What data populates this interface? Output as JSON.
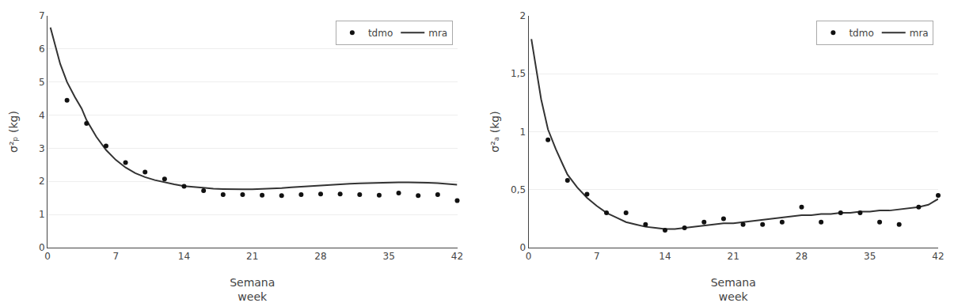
{
  "chart_data": [
    {
      "type": "line",
      "x_label": "Semana\nweek",
      "y_label": "σ²ₚ (kg)",
      "xlim": [
        0,
        42
      ],
      "xticks": [
        0,
        7,
        14,
        21,
        28,
        35,
        42
      ],
      "ylim": [
        0,
        7
      ],
      "yticks": [
        0,
        1,
        2,
        3,
        4,
        5,
        6,
        7
      ],
      "grid": "y",
      "legend": "upper right",
      "series": [
        {
          "name": "tdmo",
          "type": "scatter",
          "marker": "circle",
          "color": "#111111",
          "x": [
            2,
            4,
            6,
            8,
            10,
            12,
            14,
            16,
            18,
            20,
            22,
            24,
            26,
            28,
            30,
            32,
            34,
            36,
            38,
            40,
            42
          ],
          "values": [
            4.45,
            3.75,
            3.07,
            2.57,
            2.28,
            2.07,
            1.85,
            1.72,
            1.6,
            1.6,
            1.58,
            1.57,
            1.6,
            1.62,
            1.62,
            1.6,
            1.58,
            1.65,
            1.57,
            1.6,
            1.42
          ]
        },
        {
          "name": "mra",
          "type": "line",
          "line_style": "solid",
          "color": "#333333",
          "x": [
            0.3,
            0.8,
            1.3,
            2,
            2.8,
            3.5,
            4,
            5,
            6,
            7,
            8,
            9,
            10,
            11,
            12,
            13,
            14,
            15,
            16,
            17,
            18,
            19,
            20,
            21,
            22,
            23,
            24,
            25,
            26,
            27,
            28,
            29,
            30,
            31,
            32,
            33,
            34,
            35,
            36,
            37,
            38,
            39,
            40,
            41,
            42
          ],
          "values": [
            6.65,
            6.1,
            5.55,
            5.0,
            4.55,
            4.2,
            3.85,
            3.35,
            2.95,
            2.65,
            2.42,
            2.25,
            2.13,
            2.04,
            1.97,
            1.91,
            1.86,
            1.83,
            1.8,
            1.78,
            1.77,
            1.76,
            1.76,
            1.76,
            1.77,
            1.78,
            1.8,
            1.82,
            1.84,
            1.86,
            1.88,
            1.9,
            1.92,
            1.93,
            1.94,
            1.95,
            1.96,
            1.97,
            1.97,
            1.97,
            1.97,
            1.96,
            1.95,
            1.93,
            1.9
          ]
        }
      ]
    },
    {
      "type": "line",
      "x_label": "Semana\nweek",
      "y_label": "σ²ₐ (kg)",
      "xlim": [
        0,
        42
      ],
      "xticks": [
        0,
        7,
        14,
        21,
        28,
        35,
        42
      ],
      "ylim": [
        0,
        2
      ],
      "yticks": [
        0,
        {
          "value": 0.5,
          "label": "0,5"
        },
        1,
        {
          "value": 1.5,
          "label": "1,5"
        },
        2
      ],
      "grid": "y",
      "legend": "upper right",
      "series": [
        {
          "name": "tdmo",
          "type": "scatter",
          "marker": "circle",
          "color": "#111111",
          "x": [
            2,
            4,
            6,
            8,
            10,
            12,
            14,
            16,
            18,
            20,
            22,
            24,
            26,
            28,
            30,
            32,
            34,
            36,
            38,
            40,
            42
          ],
          "values": [
            0.93,
            0.58,
            0.46,
            0.3,
            0.3,
            0.2,
            0.15,
            0.17,
            0.22,
            0.25,
            0.2,
            0.2,
            0.22,
            0.35,
            0.22,
            0.3,
            0.3,
            0.22,
            0.2,
            0.35,
            0.45
          ]
        },
        {
          "name": "mra",
          "type": "line",
          "line_style": "solid",
          "color": "#333333",
          "x": [
            0.3,
            0.8,
            1.3,
            2,
            2.8,
            3.5,
            4,
            5,
            6,
            7,
            8,
            9,
            10,
            11,
            12,
            13,
            14,
            15,
            16,
            17,
            18,
            19,
            20,
            21,
            22,
            23,
            24,
            25,
            26,
            27,
            28,
            29,
            30,
            31,
            32,
            33,
            34,
            35,
            36,
            37,
            38,
            39,
            40,
            41,
            42
          ],
          "values": [
            1.8,
            1.55,
            1.28,
            1.02,
            0.85,
            0.72,
            0.63,
            0.52,
            0.43,
            0.36,
            0.3,
            0.26,
            0.22,
            0.2,
            0.18,
            0.17,
            0.16,
            0.16,
            0.17,
            0.18,
            0.19,
            0.2,
            0.21,
            0.21,
            0.22,
            0.23,
            0.24,
            0.25,
            0.26,
            0.27,
            0.28,
            0.28,
            0.29,
            0.29,
            0.3,
            0.3,
            0.31,
            0.31,
            0.32,
            0.32,
            0.33,
            0.34,
            0.35,
            0.37,
            0.42
          ]
        }
      ]
    }
  ]
}
